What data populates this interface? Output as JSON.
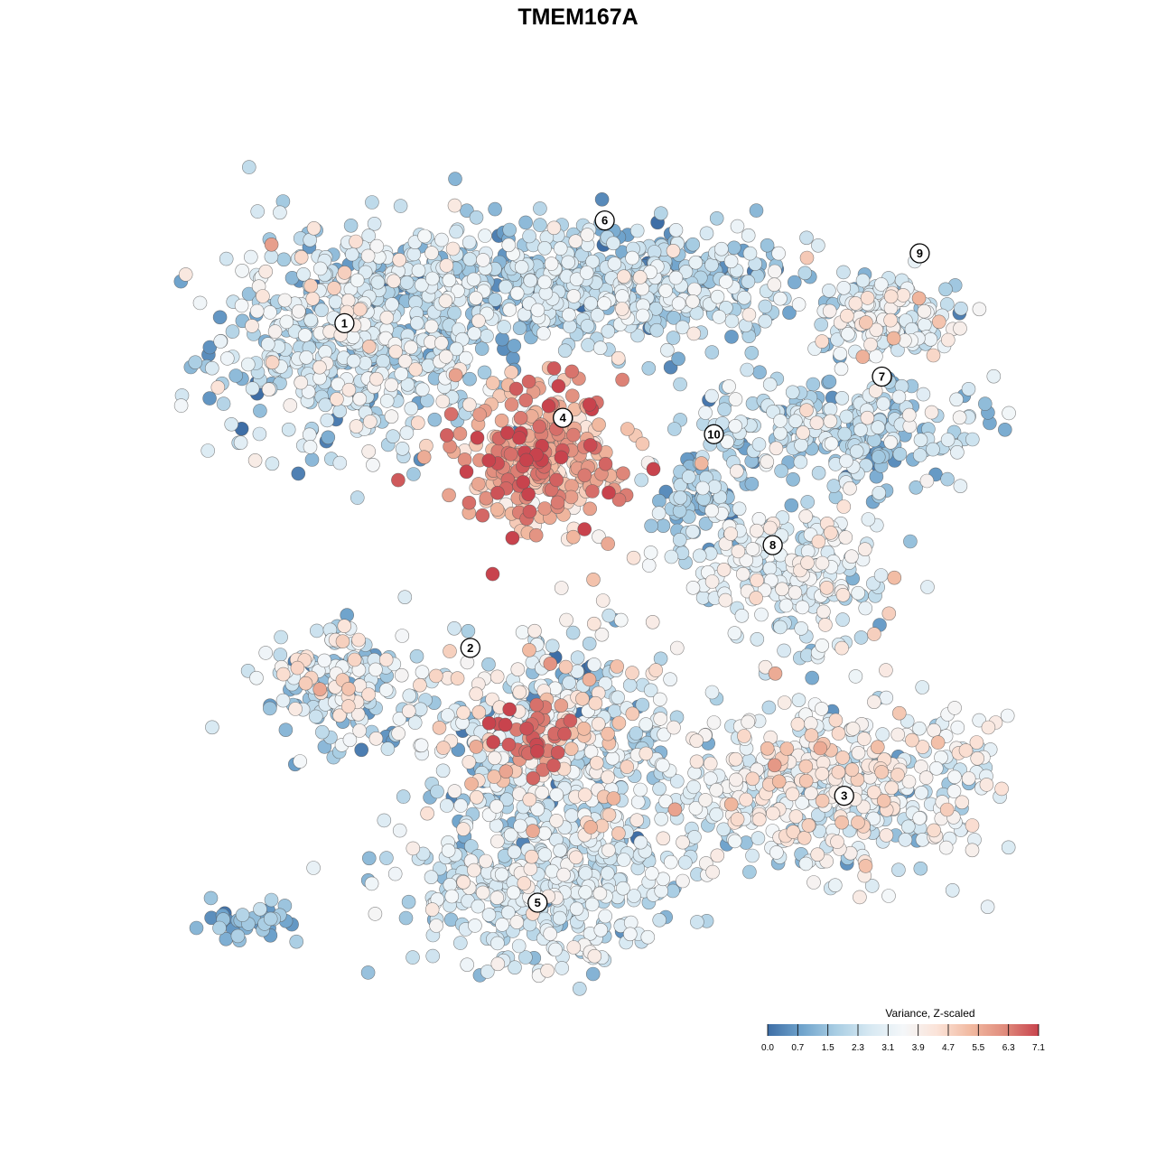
{
  "chart_data": {
    "type": "scatter",
    "title": "TMEM167A",
    "legend": {
      "title": "Variance, Z-scaled",
      "placement": "bottom-right",
      "ticks": [
        "0.0",
        "0.7",
        "1.5",
        "2.3",
        "3.1",
        "3.9",
        "4.7",
        "5.5",
        "6.3",
        "7.1"
      ],
      "range": [
        0.0,
        7.1
      ]
    },
    "colors": {
      "scale": [
        "#3e6ea6",
        "#6fa3cc",
        "#a8cde3",
        "#d6e8f2",
        "#f4f7f9",
        "#fbe3d8",
        "#f1b9a0",
        "#e08b7c",
        "#c8434d"
      ],
      "point_stroke": "#555555"
    },
    "clusters": [
      {
        "label": "1",
        "x": 0.21,
        "y": 0.79,
        "sx": 0.085,
        "sy": 0.07,
        "n": 600,
        "value": 2.4,
        "spread": 1.0
      },
      {
        "label": "6",
        "x": 0.49,
        "y": 0.86,
        "sx": 0.13,
        "sy": 0.035,
        "n": 650,
        "value": 2.1,
        "spread": 0.9
      },
      {
        "label": "9",
        "x": 0.84,
        "y": 0.82,
        "sx": 0.045,
        "sy": 0.025,
        "n": 160,
        "value": 2.9,
        "spread": 0.9
      },
      {
        "label": "7",
        "x": 0.79,
        "y": 0.68,
        "sx": 0.09,
        "sy": 0.035,
        "n": 280,
        "value": 2.1,
        "spread": 0.9
      },
      {
        "label": "4",
        "x": 0.43,
        "y": 0.64,
        "sx": 0.05,
        "sy": 0.045,
        "n": 300,
        "value": 5.6,
        "spread": 1.0
      },
      {
        "label": "10",
        "x": 0.62,
        "y": 0.6,
        "sx": 0.025,
        "sy": 0.025,
        "n": 70,
        "value": 1.5,
        "spread": 0.6
      },
      {
        "label": "8",
        "x": 0.72,
        "y": 0.51,
        "sx": 0.065,
        "sy": 0.04,
        "n": 240,
        "value": 3.0,
        "spread": 0.8
      },
      {
        "label": "2",
        "x": 0.2,
        "y": 0.37,
        "sx": 0.045,
        "sy": 0.035,
        "n": 190,
        "value": 2.4,
        "spread": 1.2
      },
      {
        "label": "3",
        "x": 0.77,
        "y": 0.25,
        "sx": 0.1,
        "sy": 0.055,
        "n": 500,
        "value": 3.3,
        "spread": 0.9
      },
      {
        "label": "5",
        "x": 0.43,
        "y": 0.13,
        "sx": 0.085,
        "sy": 0.055,
        "n": 450,
        "value": 2.7,
        "spread": 0.8
      },
      {
        "label": "",
        "x": 0.44,
        "y": 0.31,
        "sx": 0.07,
        "sy": 0.06,
        "n": 420,
        "value": 2.8,
        "spread": 1.5
      },
      {
        "label": "",
        "x": 0.42,
        "y": 0.3,
        "sx": 0.025,
        "sy": 0.025,
        "n": 35,
        "value": 6.6,
        "spread": 0.4
      },
      {
        "label": "",
        "x": 0.08,
        "y": 0.08,
        "sx": 0.03,
        "sy": 0.012,
        "n": 35,
        "value": 1.2,
        "spread": 0.5
      }
    ],
    "label_points": [
      {
        "label": "1",
        "x": 0.195,
        "y": 0.81
      },
      {
        "label": "6",
        "x": 0.505,
        "y": 0.935
      },
      {
        "label": "9",
        "x": 0.88,
        "y": 0.895
      },
      {
        "label": "7",
        "x": 0.835,
        "y": 0.745
      },
      {
        "label": "4",
        "x": 0.455,
        "y": 0.695
      },
      {
        "label": "10",
        "x": 0.635,
        "y": 0.675
      },
      {
        "label": "8",
        "x": 0.705,
        "y": 0.54
      },
      {
        "label": "2",
        "x": 0.345,
        "y": 0.415
      },
      {
        "label": "3",
        "x": 0.79,
        "y": 0.235
      },
      {
        "label": "5",
        "x": 0.425,
        "y": 0.105
      }
    ]
  }
}
